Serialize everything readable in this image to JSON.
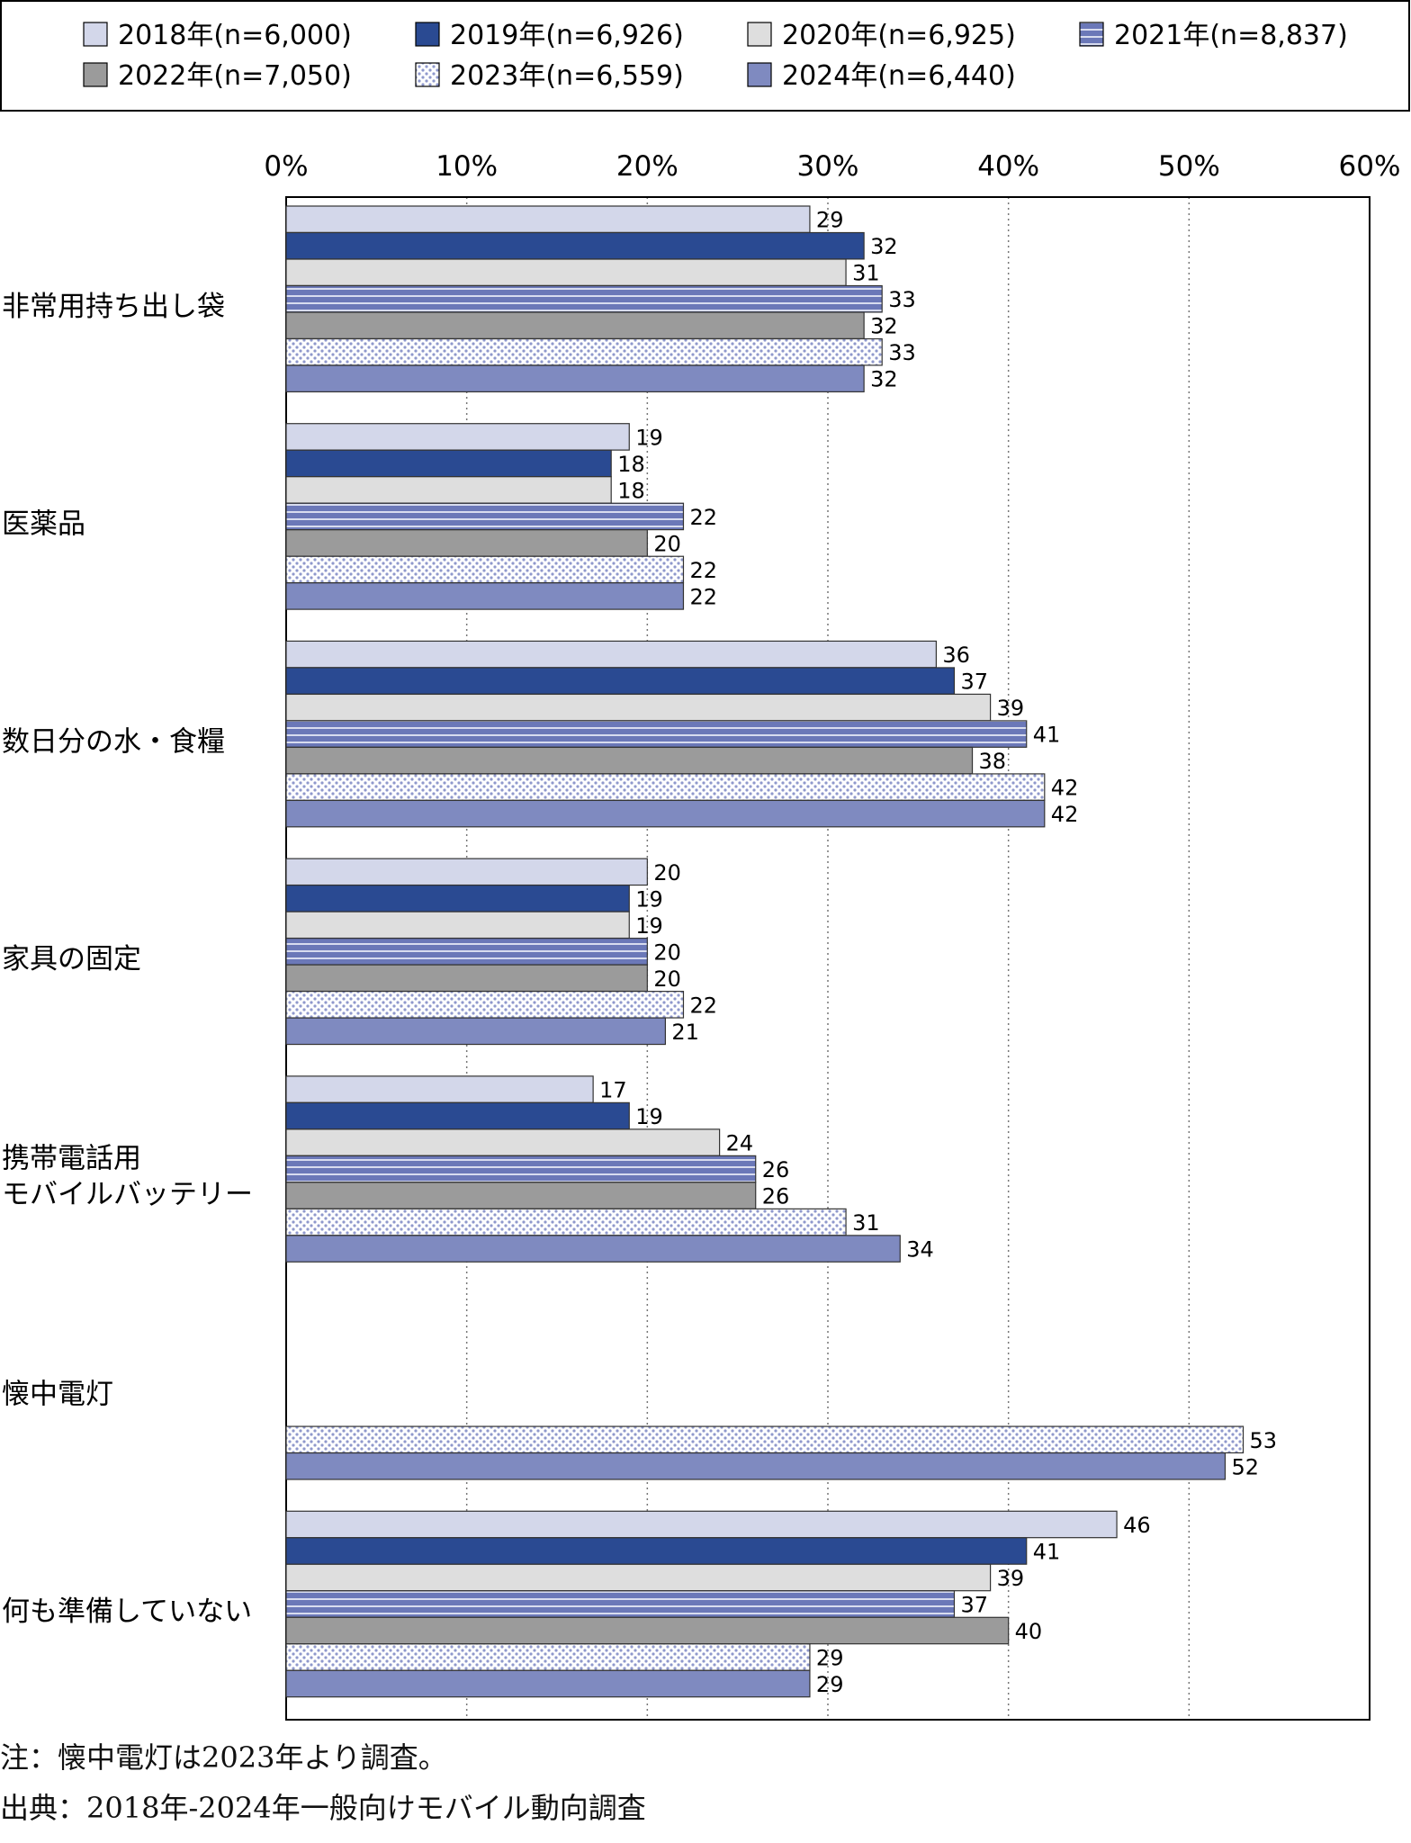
{
  "chart_data": {
    "type": "bar",
    "orientation": "horizontal",
    "xlim": [
      0,
      60
    ],
    "x_ticks": [
      "0%",
      "10%",
      "20%",
      "30%",
      "40%",
      "50%",
      "60%"
    ],
    "grid": "vertical dotted",
    "legend_position": "top",
    "categories": [
      [
        "非常用持ち出し袋"
      ],
      [
        "医薬品"
      ],
      [
        "数日分の水・食糧"
      ],
      [
        "家具の固定"
      ],
      [
        "携帯電話用",
        "モバイルバッテリー"
      ],
      [
        "懐中電灯"
      ],
      [
        "何も準備していない"
      ]
    ],
    "series": [
      {
        "name": "2018年(n=6,000)",
        "color": "#d3d7ea",
        "pattern": "solid",
        "values": [
          29,
          19,
          36,
          20,
          17,
          null,
          46
        ]
      },
      {
        "name": "2019年(n=6,926)",
        "color": "#2a4a92",
        "pattern": "solid",
        "values": [
          32,
          18,
          37,
          19,
          19,
          null,
          41
        ]
      },
      {
        "name": "2020年(n=6,925)",
        "color": "#dedede",
        "pattern": "solid",
        "values": [
          31,
          18,
          39,
          19,
          24,
          null,
          39
        ]
      },
      {
        "name": "2021年(n=8,837)",
        "color": "#6b78b8",
        "pattern": "horizontal-stripes",
        "values": [
          33,
          22,
          41,
          20,
          26,
          null,
          37
        ]
      },
      {
        "name": "2022年(n=7,050)",
        "color": "#9b9b9b",
        "pattern": "solid",
        "values": [
          32,
          20,
          38,
          20,
          26,
          null,
          40
        ]
      },
      {
        "name": "2023年(n=6,559)",
        "color": "#9aa3d2",
        "pattern": "dots",
        "values": [
          33,
          22,
          42,
          22,
          31,
          53,
          29
        ]
      },
      {
        "name": "2024年(n=6,440)",
        "color": "#7f8ac0",
        "pattern": "solid",
        "values": [
          32,
          22,
          42,
          21,
          34,
          52,
          29
        ]
      }
    ]
  },
  "notes": {
    "note": "注：懐中電灯は2023年より調査。",
    "source": "出典：2018年-2024年一般向けモバイル動向調査"
  }
}
